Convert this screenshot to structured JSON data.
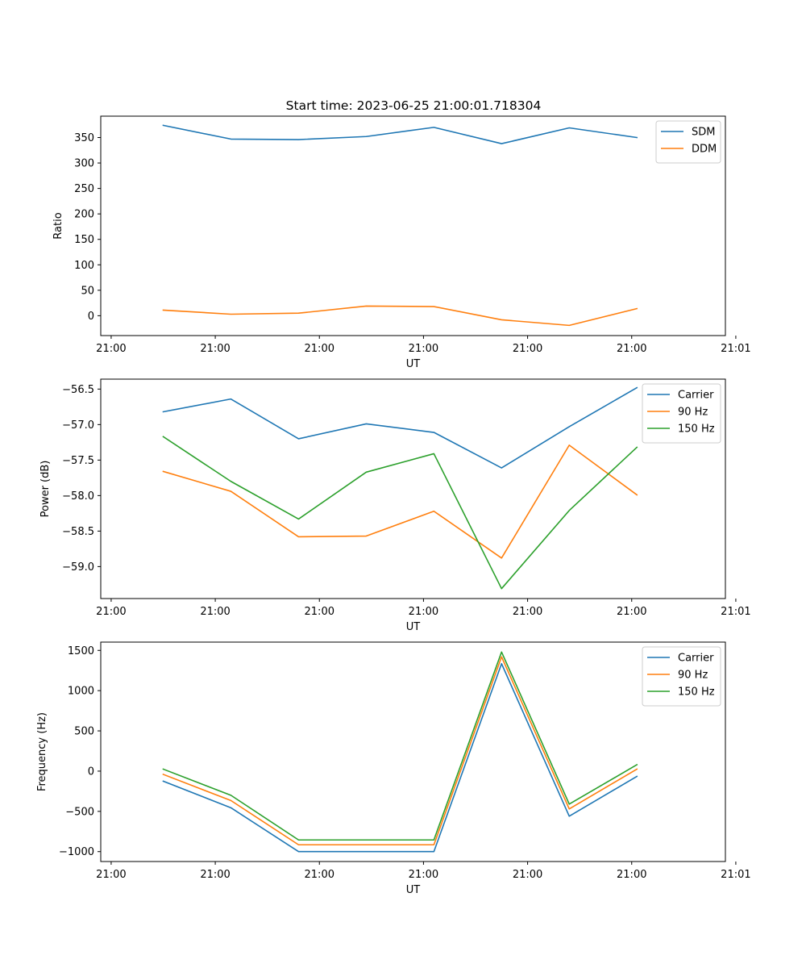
{
  "figure": {
    "title": "Start time: 2023-06-25 21:00:01.718304"
  },
  "chart_data": [
    {
      "type": "line",
      "title": "Start time: 2023-06-25 21:00:01.718304",
      "xlabel": "UT",
      "ylabel": "Ratio",
      "xticks": [
        "21:00",
        "21:00",
        "21:00",
        "21:00",
        "21:00",
        "21:00",
        "21:01"
      ],
      "x": [
        0.5,
        1.15,
        1.8,
        2.45,
        3.1,
        3.75,
        4.4,
        5.05
      ],
      "xlim": [
        -0.1,
        5.9
      ],
      "ylim": [
        -39,
        392
      ],
      "yticks": [
        0,
        50,
        100,
        150,
        200,
        250,
        300,
        350
      ],
      "legend": "top-right",
      "series": [
        {
          "name": "SDM",
          "color": "#1f77b4",
          "values": [
            374,
            347,
            346,
            352,
            370,
            338,
            369,
            350
          ]
        },
        {
          "name": "DDM",
          "color": "#ff7f0e",
          "values": [
            11,
            3,
            5,
            19,
            18,
            -8,
            -19,
            14
          ]
        }
      ]
    },
    {
      "type": "line",
      "xlabel": "UT",
      "ylabel": "Power (dB)",
      "xticks": [
        "21:00",
        "21:00",
        "21:00",
        "21:00",
        "21:00",
        "21:00",
        "21:01"
      ],
      "x": [
        0.5,
        1.15,
        1.8,
        2.45,
        3.1,
        3.75,
        4.4,
        5.05
      ],
      "xlim": [
        -0.1,
        5.9
      ],
      "ylim": [
        -59.45,
        -56.36
      ],
      "yticks": [
        -59.0,
        -58.5,
        -58.0,
        -57.5,
        -57.0,
        -56.5
      ],
      "legend": "top-right",
      "series": [
        {
          "name": "Carrier",
          "color": "#1f77b4",
          "values": [
            -56.82,
            -56.64,
            -57.2,
            -56.99,
            -57.11,
            -57.61,
            -57.03,
            -56.48
          ]
        },
        {
          "name": "90 Hz",
          "color": "#ff7f0e",
          "values": [
            -57.66,
            -57.94,
            -58.58,
            -58.57,
            -58.22,
            -58.88,
            -57.29,
            -57.99
          ]
        },
        {
          "name": "150 Hz",
          "color": "#2ca02c",
          "values": [
            -57.17,
            -57.8,
            -58.33,
            -57.67,
            -57.41,
            -59.31,
            -58.21,
            -57.32
          ]
        }
      ]
    },
    {
      "type": "line",
      "xlabel": "UT",
      "ylabel": "Frequency (Hz)",
      "xticks": [
        "21:00",
        "21:00",
        "21:00",
        "21:00",
        "21:00",
        "21:00",
        "21:01"
      ],
      "x": [
        0.5,
        1.15,
        1.8,
        2.45,
        3.1,
        3.75,
        4.4,
        5.05
      ],
      "xlim": [
        -0.1,
        5.9
      ],
      "ylim": [
        -1123,
        1603
      ],
      "yticks": [
        -1000,
        -500,
        0,
        500,
        1000,
        1500
      ],
      "legend": "top-right",
      "series": [
        {
          "name": "Carrier",
          "color": "#1f77b4",
          "values": [
            -125,
            -455,
            -1000,
            -1000,
            -1000,
            1335,
            -560,
            -65
          ]
        },
        {
          "name": "90 Hz",
          "color": "#ff7f0e",
          "values": [
            -40,
            -365,
            -915,
            -915,
            -915,
            1420,
            -470,
            25
          ]
        },
        {
          "name": "150 Hz",
          "color": "#2ca02c",
          "values": [
            25,
            -300,
            -855,
            -855,
            -855,
            1480,
            -410,
            80
          ]
        }
      ]
    }
  ]
}
